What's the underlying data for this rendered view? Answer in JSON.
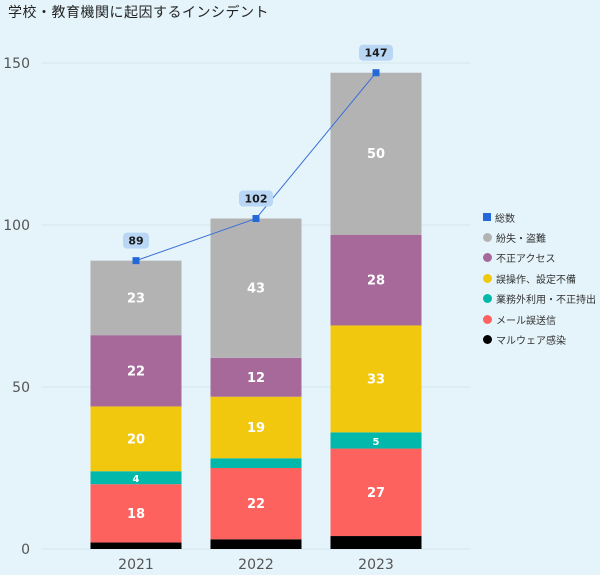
{
  "title": "学校・教育機関に起因するインシデント",
  "chart_data": {
    "type": "bar",
    "stacked": true,
    "categories": [
      "2021",
      "2022",
      "2023"
    ],
    "ylim": [
      0,
      150
    ],
    "yticks": [
      0,
      50,
      100,
      150
    ],
    "grid": true,
    "legend_position": "right",
    "series": [
      {
        "name": "マルウェア感染",
        "color": "#000000",
        "values": [
          2,
          3,
          4
        ],
        "label": false
      },
      {
        "name": "メール誤送信",
        "color": "#fd625e",
        "values": [
          18,
          22,
          27
        ],
        "label": true
      },
      {
        "name": "業務外利用・不正持出",
        "color": "#01b8aa",
        "values": [
          4,
          3,
          5
        ],
        "label": "2021,2023"
      },
      {
        "name": "誤操作、設定不備",
        "color": "#f2c80f",
        "values": [
          20,
          19,
          33
        ],
        "label": true
      },
      {
        "name": "不正アクセス",
        "color": "#a66999",
        "values": [
          22,
          12,
          28
        ],
        "label": true
      },
      {
        "name": "紛失・盗難",
        "color": "#b3b3b3",
        "values": [
          23,
          43,
          50
        ],
        "label": true
      }
    ],
    "line": {
      "name": "総数",
      "color": "#3a6fd8",
      "marker_color": "#2568d8",
      "values": [
        89,
        102,
        147
      ]
    }
  }
}
